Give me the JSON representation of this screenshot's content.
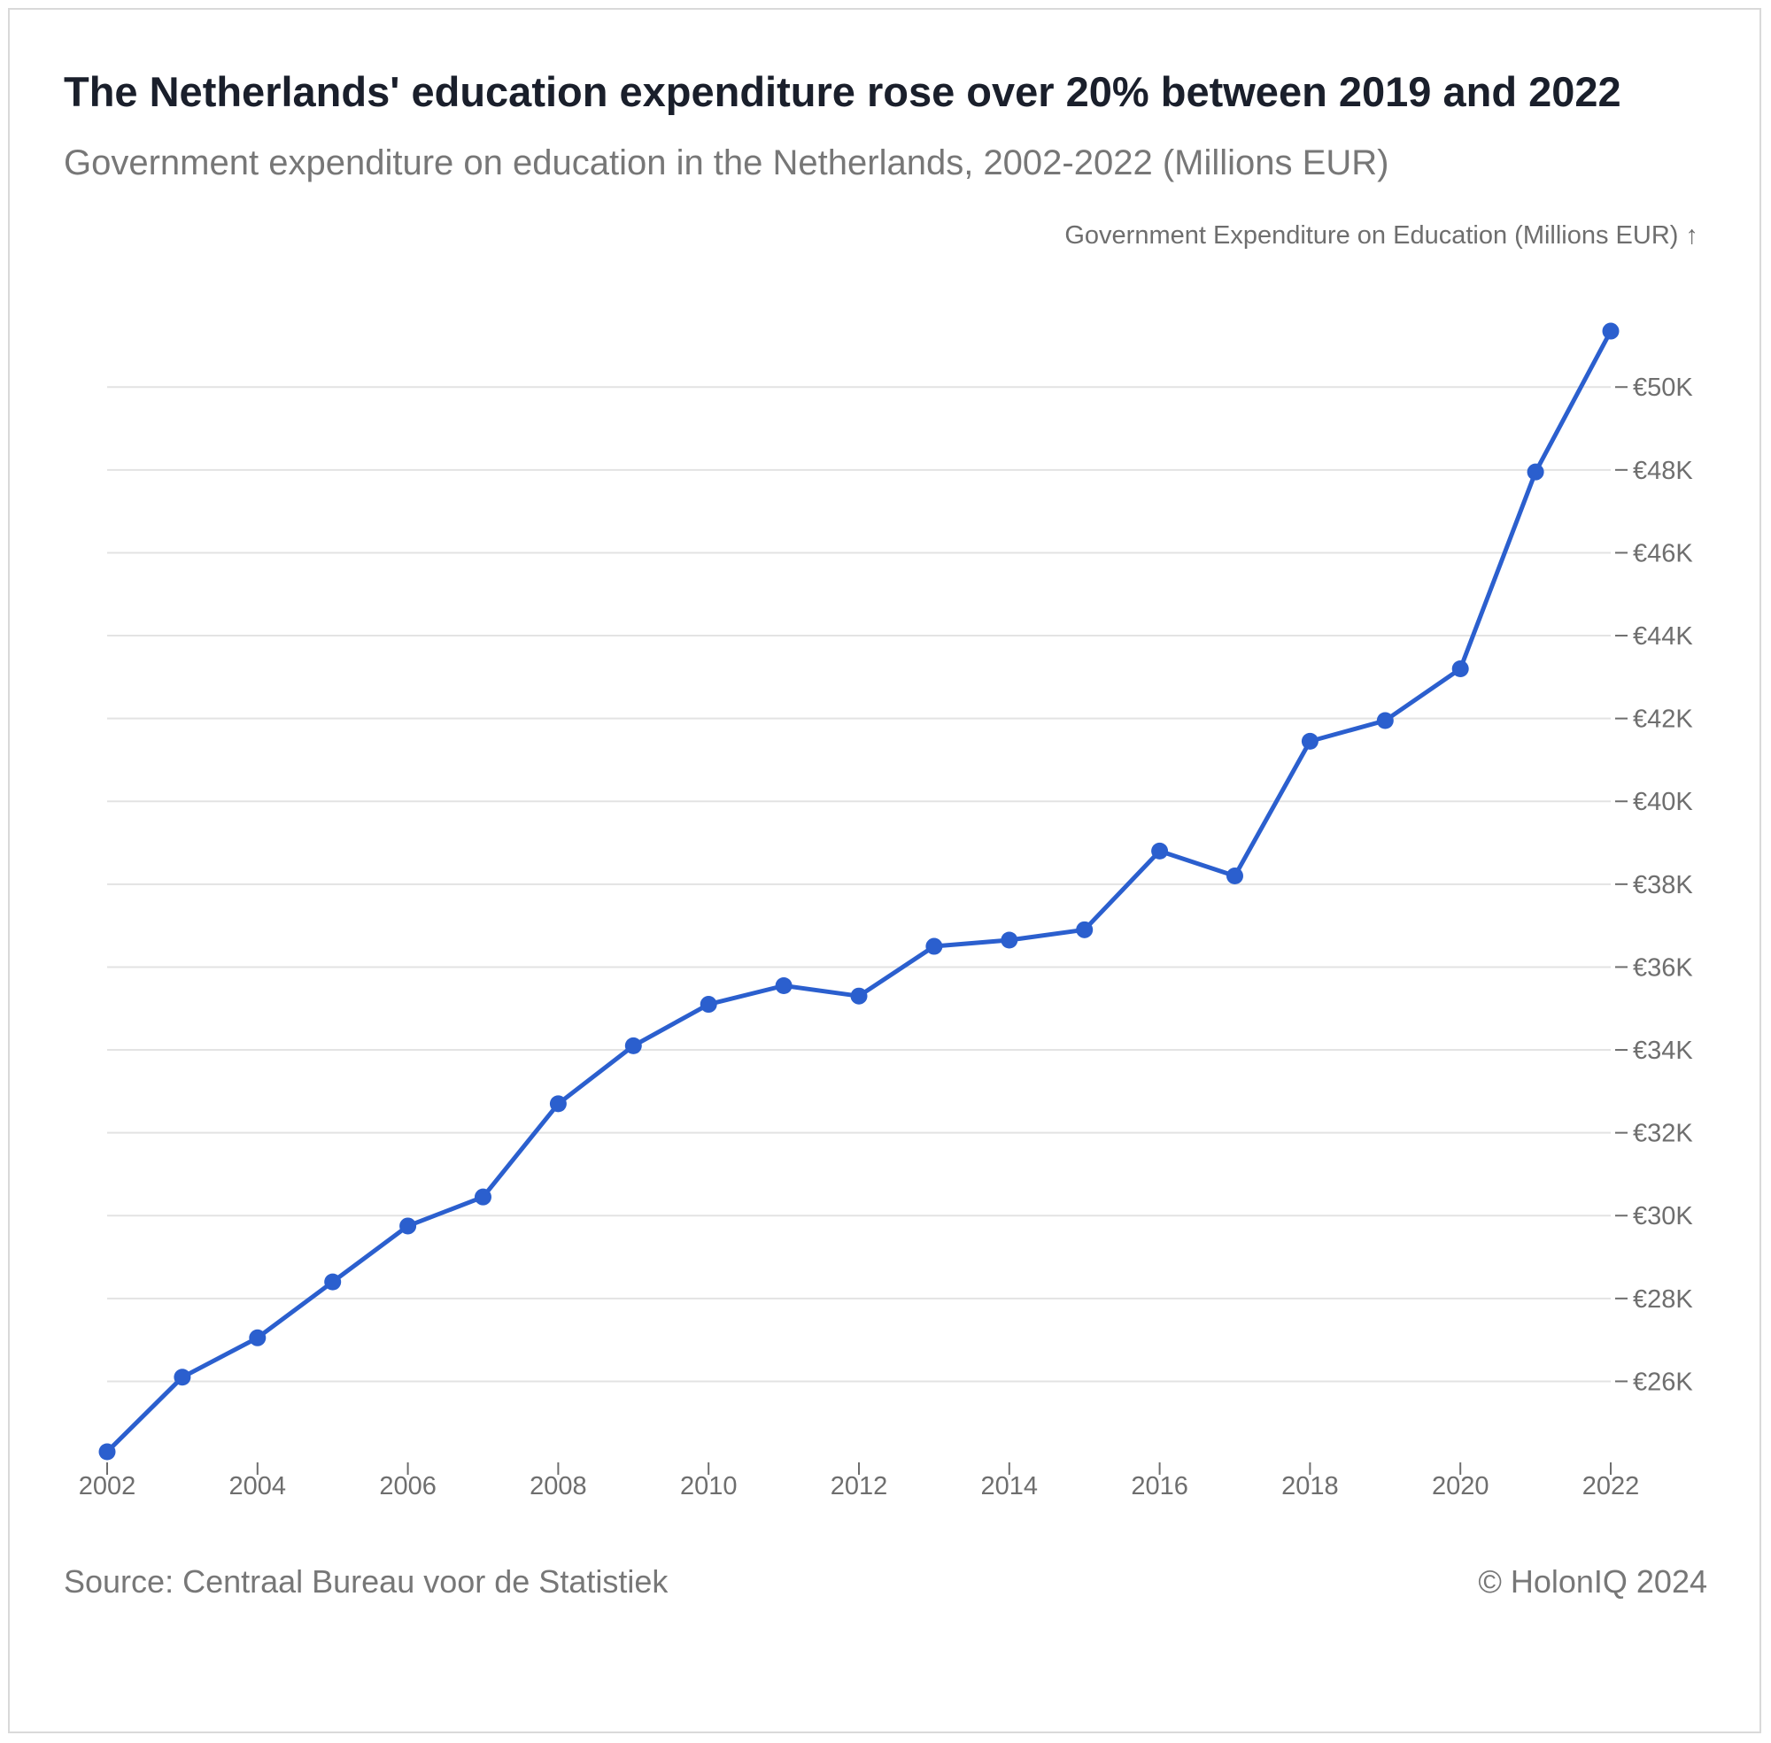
{
  "header": {
    "title": "The Netherlands' education expenditure rose over 20% between 2019 and 2022",
    "subtitle": "Government expenditure on education in the Netherlands, 2002-2022 (Millions EUR)"
  },
  "footer": {
    "source": "Source: Centraal Bureau voor de Statistiek",
    "credit": "© HolonIQ 2024"
  },
  "colors": {
    "series": "#2b5fce",
    "grid": "#e3e3e3",
    "axis_text": "#6e6e6e"
  },
  "chart_data": {
    "type": "line",
    "title": "The Netherlands' education expenditure rose over 20% between 2019 and 2022",
    "subtitle": "Government expenditure on education in the Netherlands, 2002-2022 (Millions EUR)",
    "xlabel": "",
    "ylabel": "Government Expenditure on Education (Millions EUR) ↑",
    "y_axis_position": "right",
    "grid": true,
    "legend": "none",
    "xlim": [
      2002,
      2022
    ],
    "ylim": [
      24300,
      51800
    ],
    "x_ticks": [
      2002,
      2004,
      2006,
      2008,
      2010,
      2012,
      2014,
      2016,
      2018,
      2020,
      2022
    ],
    "y_ticks": [
      26000,
      28000,
      30000,
      32000,
      34000,
      36000,
      38000,
      40000,
      42000,
      44000,
      46000,
      48000,
      50000
    ],
    "y_tick_labels": [
      "€26K",
      "€28K",
      "€30K",
      "€32K",
      "€34K",
      "€36K",
      "€38K",
      "€40K",
      "€42K",
      "€44K",
      "€46K",
      "€48K",
      "€50K"
    ],
    "x_tick_labels": [
      "2002",
      "2004",
      "2006",
      "2008",
      "2010",
      "2012",
      "2014",
      "2016",
      "2018",
      "2020",
      "2022"
    ],
    "series": [
      {
        "x": [
          2002,
          2003,
          2004,
          2005,
          2006,
          2007,
          2008,
          2009,
          2010,
          2011,
          2012,
          2013,
          2014,
          2015,
          2016,
          2017,
          2018,
          2019,
          2020,
          2021,
          2022
        ],
        "values": [
          24300,
          26100,
          27050,
          28400,
          29750,
          30450,
          32700,
          34100,
          35100,
          35550,
          35300,
          36500,
          36650,
          36900,
          38800,
          38200,
          41450,
          41950,
          43200,
          47950,
          51350
        ]
      }
    ]
  }
}
